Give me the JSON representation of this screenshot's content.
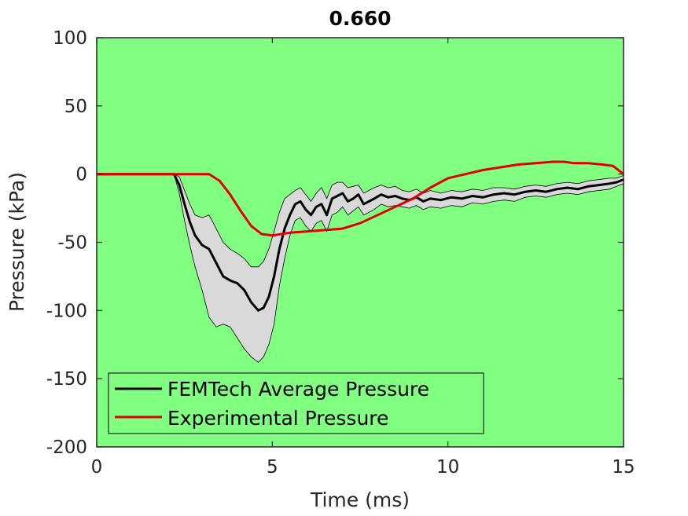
{
  "chart_data": {
    "type": "line",
    "title": "0.660",
    "xlabel": "Time (ms)",
    "ylabel": "Pressure (kPa)",
    "xlim": [
      0,
      15
    ],
    "ylim": [
      -200,
      100
    ],
    "xticks": [
      0,
      5,
      10,
      15
    ],
    "yticks": [
      100,
      50,
      0,
      -50,
      -100,
      -150,
      -200
    ],
    "xtick_labels": [
      "0",
      "5",
      "10",
      "15"
    ],
    "ytick_labels": [
      "100",
      "50",
      "0",
      "-50",
      "-100",
      "-150",
      "-200"
    ],
    "background_color": "#80ff80",
    "grid": false,
    "legend_position": "bottom-left",
    "series": [
      {
        "name": "FEMTech Average Pressure",
        "color": "#000000",
        "band_color": "#d9d9d9",
        "x": [
          0,
          2.2,
          2.35,
          2.5,
          2.65,
          2.8,
          3.0,
          3.2,
          3.4,
          3.6,
          3.8,
          4.0,
          4.2,
          4.4,
          4.6,
          4.75,
          4.9,
          5.05,
          5.2,
          5.35,
          5.5,
          5.65,
          5.8,
          5.95,
          6.1,
          6.25,
          6.4,
          6.55,
          6.7,
          6.85,
          7.0,
          7.15,
          7.3,
          7.45,
          7.6,
          7.75,
          7.9,
          8.1,
          8.3,
          8.5,
          8.7,
          8.9,
          9.1,
          9.3,
          9.5,
          9.8,
          10.1,
          10.4,
          10.7,
          11.0,
          11.3,
          11.6,
          11.9,
          12.2,
          12.5,
          12.8,
          13.1,
          13.4,
          13.7,
          14.0,
          14.3,
          14.6,
          14.8,
          15.0
        ],
        "y": [
          0,
          0,
          -8,
          -22,
          -35,
          -45,
          -52,
          -55,
          -65,
          -75,
          -78,
          -80,
          -85,
          -94,
          -100,
          -98,
          -90,
          -75,
          -55,
          -40,
          -30,
          -22,
          -20,
          -26,
          -30,
          -24,
          -22,
          -30,
          -18,
          -16,
          -14,
          -20,
          -18,
          -15,
          -22,
          -20,
          -18,
          -15,
          -17,
          -16,
          -18,
          -19,
          -17,
          -20,
          -18,
          -19,
          -17,
          -18,
          -16,
          -17,
          -15,
          -14,
          -15,
          -13,
          -12,
          -13,
          -11,
          -10,
          -11,
          -9,
          -8,
          -7,
          -6,
          -4
        ],
        "upper": [
          0,
          0,
          -2,
          -12,
          -22,
          -30,
          -32,
          -30,
          -40,
          -50,
          -55,
          -58,
          -62,
          -68,
          -68,
          -64,
          -55,
          -42,
          -28,
          -18,
          -15,
          -12,
          -10,
          -15,
          -20,
          -14,
          -10,
          -18,
          -8,
          -6,
          -6,
          -10,
          -9,
          -8,
          -14,
          -12,
          -10,
          -8,
          -10,
          -9,
          -12,
          -13,
          -11,
          -14,
          -12,
          -14,
          -12,
          -13,
          -11,
          -12,
          -10,
          -10,
          -11,
          -9,
          -8,
          -9,
          -7,
          -6,
          -7,
          -5,
          -4,
          -3,
          -3,
          -1
        ],
        "lower": [
          0,
          0,
          -14,
          -34,
          -52,
          -68,
          -85,
          -105,
          -112,
          -110,
          -112,
          -120,
          -128,
          -134,
          -138,
          -134,
          -125,
          -110,
          -82,
          -62,
          -45,
          -34,
          -32,
          -38,
          -42,
          -36,
          -34,
          -42,
          -30,
          -28,
          -24,
          -30,
          -27,
          -24,
          -30,
          -28,
          -26,
          -22,
          -24,
          -23,
          -24,
          -25,
          -23,
          -26,
          -24,
          -25,
          -23,
          -24,
          -21,
          -22,
          -20,
          -19,
          -20,
          -17,
          -16,
          -17,
          -15,
          -14,
          -15,
          -13,
          -12,
          -11,
          -9,
          -7
        ]
      },
      {
        "name": "Experimental Pressure",
        "color": "#e00000",
        "x": [
          0,
          3.2,
          3.5,
          3.8,
          4.1,
          4.4,
          4.7,
          5.0,
          5.5,
          6.0,
          6.5,
          7.0,
          7.5,
          8.0,
          8.5,
          9.0,
          9.5,
          10.0,
          10.5,
          11.0,
          11.5,
          12.0,
          12.5,
          13.0,
          13.3,
          13.6,
          14.0,
          14.4,
          14.7,
          15.0
        ],
        "y": [
          0,
          0,
          -5,
          -15,
          -27,
          -38,
          -44,
          -45,
          -43,
          -42,
          -41,
          -40,
          -36,
          -30,
          -24,
          -18,
          -10,
          -3,
          0,
          3,
          5,
          7,
          8,
          9,
          9,
          8,
          8,
          7,
          6,
          0
        ]
      }
    ]
  }
}
